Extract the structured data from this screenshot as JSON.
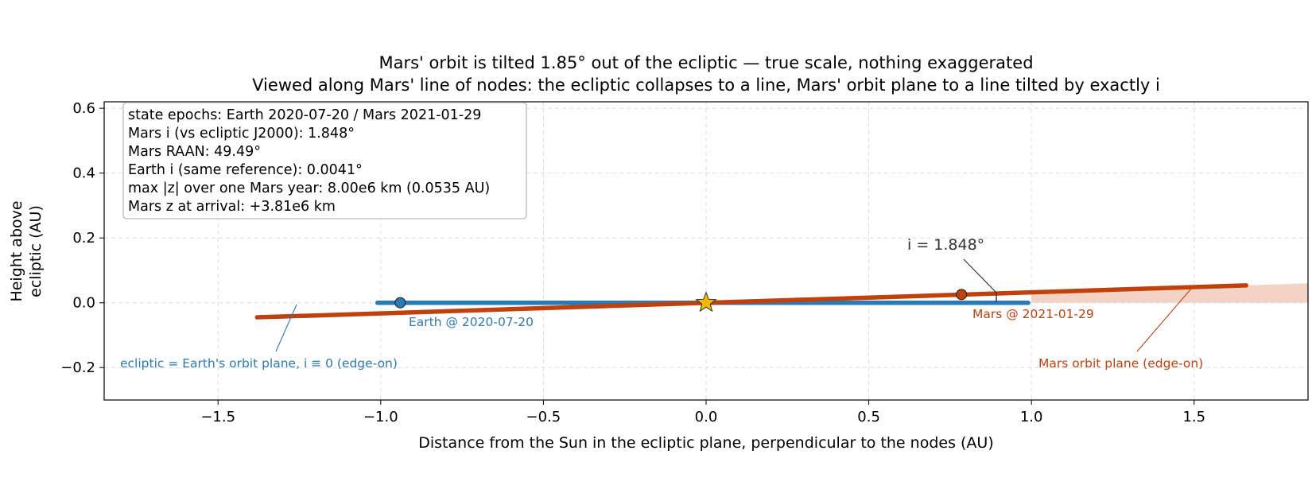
{
  "colors": {
    "earth": "#2a7ab8",
    "mars": "#c0410c",
    "mars_fill": "#f2d3c6",
    "sun": "#f5b800",
    "grid": "#dddddd",
    "annotation": "#333333"
  },
  "chart_data": {
    "type": "line",
    "title": "Mars' orbit is tilted 1.85° out of the ecliptic — true scale, nothing exaggerated",
    "subtitle": "Viewed along Mars' line of nodes: the ecliptic collapses to a line, Mars' orbit plane to a line tilted by exactly i",
    "xlabel": "Distance from the Sun in the ecliptic plane, perpendicular to the nodes (AU)",
    "ylabel_lines": [
      "Height above",
      "ecliptic (AU)"
    ],
    "xlim": [
      -1.85,
      1.85
    ],
    "ylim": [
      -0.3,
      0.62
    ],
    "grid": true,
    "x_ticks": [
      -1.5,
      -1.0,
      -0.5,
      0.0,
      0.5,
      1.0,
      1.5
    ],
    "x_tick_labels": [
      "−1.5",
      "−1.0",
      "−0.5",
      "0.0",
      "0.5",
      "1.0",
      "1.5"
    ],
    "y_ticks": [
      -0.2,
      0.0,
      0.2,
      0.4,
      0.6
    ],
    "y_tick_labels": [
      "−0.2",
      "0.0",
      "0.2",
      "0.4",
      "0.6"
    ],
    "series": [
      {
        "x": [
          -1.01,
          0.99
        ],
        "y": [
          0.0,
          0.0
        ]
      },
      {
        "x": [
          -1.38,
          1.66
        ],
        "y": [
          -0.045,
          0.0535
        ]
      }
    ],
    "mars_plane_fill": {
      "x": [
        1.0,
        1.85
      ],
      "y_top": [
        0.0323,
        0.06
      ]
    },
    "points": {
      "sun": {
        "x": 0.0,
        "y": 0.0
      },
      "earth": {
        "x": -0.94,
        "y": 0.0,
        "label": "Earth @ 2020-07-20"
      },
      "mars": {
        "x": 0.785,
        "y": 0.0255,
        "label": "Mars @ 2021-01-29"
      }
    },
    "inclination_label": "i = 1.848°",
    "annotations": {
      "ecliptic": "ecliptic = Earth's orbit plane, i ≡ 0 (edge-on)",
      "mars_plane": "Mars orbit plane (edge-on)"
    },
    "info_box": [
      "state epochs: Earth 2020-07-20 / Mars 2021-01-29",
      "Mars i (vs ecliptic J2000): 1.848°",
      "Mars RAAN: 49.49°",
      "Earth i (same reference): 0.0041°",
      "max |z| over one Mars year: 8.00e6 km (0.0535 AU)",
      "Mars z at arrival: +3.81e6 km"
    ]
  }
}
